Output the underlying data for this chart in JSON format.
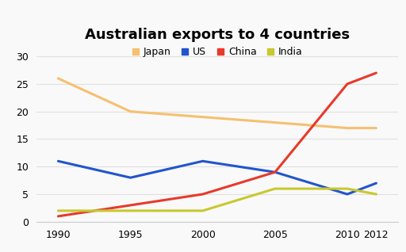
{
  "title": "Australian exports to 4 countries",
  "years": [
    1990,
    1995,
    2000,
    2005,
    2010,
    2012
  ],
  "series": {
    "Japan": {
      "values": [
        26,
        20,
        19,
        18,
        17,
        17
      ],
      "color": "#f5c070",
      "linewidth": 2.2
    },
    "US": {
      "values": [
        11,
        8,
        11,
        9,
        5,
        7
      ],
      "color": "#2255cc",
      "linewidth": 2.2
    },
    "China": {
      "values": [
        1,
        3,
        5,
        9,
        25,
        27
      ],
      "color": "#e8392a",
      "linewidth": 2.2
    },
    "India": {
      "values": [
        2,
        2,
        2,
        6,
        6,
        5
      ],
      "color": "#c8c830",
      "linewidth": 2.2
    }
  },
  "legend_order": [
    "Japan",
    "US",
    "China",
    "India"
  ],
  "ylim": [
    0,
    32
  ],
  "yticks": [
    0,
    5,
    10,
    15,
    20,
    25,
    30
  ],
  "xticks": [
    1990,
    1995,
    2000,
    2005,
    2010,
    2012
  ],
  "xlim": [
    1988.5,
    2013.5
  ],
  "background_color": "#f9f9f9",
  "grid_color": "#e0e0e0",
  "title_fontsize": 13,
  "tick_fontsize": 9,
  "legend_fontsize": 9
}
